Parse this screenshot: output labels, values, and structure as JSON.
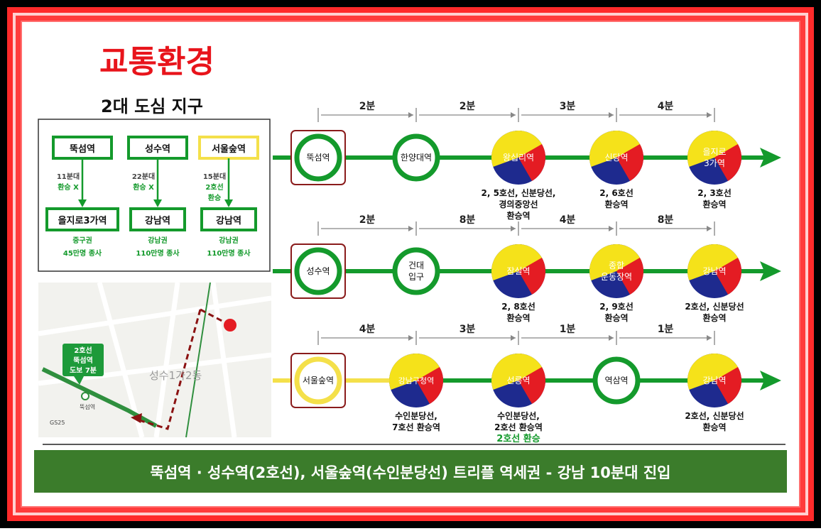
{
  "title": "교통환경",
  "subtitle": "2대 도심 지구",
  "comparison": [
    {
      "from": "뚝섬역",
      "via": [
        "11분대",
        "환승 X"
      ],
      "to": "을지로3가역",
      "area": "중구권",
      "workers": "45만명 종사"
    },
    {
      "from": "성수역",
      "via": [
        "22분대",
        "환승 X"
      ],
      "to": "강남역",
      "area": "강남권",
      "workers": "110만명 종사"
    },
    {
      "from": "서울숲역",
      "via": [
        "15분대",
        "2호선",
        "환승"
      ],
      "to": "강남역",
      "area": "강남권",
      "workers": "110만명 종사"
    }
  ],
  "routes": [
    {
      "times": [
        "2분",
        "2분",
        "3분",
        "4분"
      ],
      "stations": [
        {
          "name": [
            "뚝섬역"
          ],
          "kind": "origin-green",
          "note": []
        },
        {
          "name": [
            "한양대역"
          ],
          "kind": "green",
          "note": []
        },
        {
          "name": [
            "왕십리역"
          ],
          "kind": "transfer",
          "note": [
            "2, 5호선, 신분당선,",
            "경의중앙선",
            "환승역"
          ]
        },
        {
          "name": [
            "신당역"
          ],
          "kind": "transfer",
          "note": [
            "2, 6호선",
            "환승역"
          ]
        },
        {
          "name": [
            "을지로",
            "3가역"
          ],
          "kind": "transfer",
          "note": [
            "2, 3호선",
            "환승역"
          ]
        }
      ]
    },
    {
      "times": [
        "2분",
        "8분",
        "4분",
        "8분"
      ],
      "stations": [
        {
          "name": [
            "성수역"
          ],
          "kind": "origin-green",
          "note": []
        },
        {
          "name": [
            "건대",
            "입구"
          ],
          "kind": "green",
          "note": []
        },
        {
          "name": [
            "잠실역"
          ],
          "kind": "transfer",
          "note": [
            "2, 8호선",
            "환승역"
          ]
        },
        {
          "name": [
            "종합",
            "운동장역"
          ],
          "kind": "transfer",
          "note": [
            "2, 9호선",
            "환승역"
          ]
        },
        {
          "name": [
            "강남역"
          ],
          "kind": "transfer",
          "note": [
            "2호선, 신분당선",
            "환승역"
          ]
        }
      ]
    },
    {
      "times": [
        "4분",
        "3분",
        "1분",
        "1분"
      ],
      "stations": [
        {
          "name": [
            "서울숲역"
          ],
          "kind": "origin-yellow",
          "note": []
        },
        {
          "name": [
            "강남구청역"
          ],
          "kind": "transfer",
          "note": [
            "수인분당선,",
            "7호선 환승역"
          ]
        },
        {
          "name": [
            "선릉역"
          ],
          "kind": "transfer",
          "note": [
            "수인분당선,",
            "2호선 환승역",
            "2호선 환승"
          ]
        },
        {
          "name": [
            "역삼역"
          ],
          "kind": "green",
          "note": []
        },
        {
          "name": [
            "강남역"
          ],
          "kind": "transfer",
          "note": [
            "2호선, 신분당선",
            "환승역"
          ]
        }
      ]
    }
  ],
  "map": {
    "callout": [
      "2호선",
      "뚝섬역",
      "도보 7분"
    ],
    "district": "성수1가2동",
    "station_label": "뚝섬역",
    "gs_label": "GS25"
  },
  "banner": "뚝섬역 · 성수역(2호선), 서울숲역(수인분당선) 트리플 역세권 - 강남 10분대 진입",
  "colors": {
    "title_red": "#e8141b",
    "line_green": "#149a2c",
    "line_yellow": "#f4e04a",
    "banner_bg": "#3b7c2b",
    "taeguk_red": "#e41c23",
    "taeguk_blue": "#1e2a8e",
    "taeguk_yellow": "#f5e21a",
    "origin_box": "#8a1b1b"
  }
}
